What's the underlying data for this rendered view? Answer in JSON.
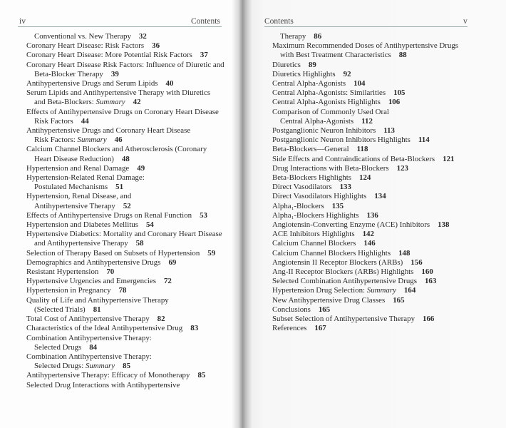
{
  "left_page": {
    "page_number": "iv",
    "running_head": "Contents",
    "entries": [
      {
        "lines": [
          "Conventional vs. New Therapy"
        ],
        "page": "32",
        "continued": true
      },
      {
        "lines": [
          "Coronary Heart Disease: Risk Factors"
        ],
        "page": "36"
      },
      {
        "lines": [
          "Coronary Heart Disease: More Potential Risk Factors"
        ],
        "page": "37"
      },
      {
        "lines": [
          "Coronary Heart Disease Risk Factors: Influence of Diuretic and",
          "Beta-Blocker Therapy"
        ],
        "page": "39"
      },
      {
        "lines": [
          "Antihypertensive Drugs and Serum Lipids"
        ],
        "page": "40"
      },
      {
        "lines": [
          "Serum Lipids and Antihypertensive Therapy with Diuretics",
          "and Beta-Blockers: "
        ],
        "em": "Summary",
        "page": "42"
      },
      {
        "lines": [
          "Effects of Antihypertensive Drugs on Coronary Heart Disease",
          "Risk Factors"
        ],
        "page": "44"
      },
      {
        "lines": [
          "Antihypertensive Drugs and Coronary Heart Disease",
          "Risk Factors: "
        ],
        "em": "Summary",
        "page": "46"
      },
      {
        "lines": [
          "Calcium Channel Blockers and Atherosclerosis (Coronary",
          "Heart Disease Reduction)"
        ],
        "page": "48"
      },
      {
        "lines": [
          "Hypertension and Renal Damage"
        ],
        "page": "49"
      },
      {
        "lines": [
          "Hypertension-Related Renal Damage:",
          "Postulated Mechanisms"
        ],
        "page": "51"
      },
      {
        "lines": [
          "Hypertension, Renal Disease, and",
          "Antihypertensive Therapy"
        ],
        "page": "52"
      },
      {
        "lines": [
          "Effects of Antihypertensive Drugs on Renal Function"
        ],
        "page": "53"
      },
      {
        "lines": [
          "Hypertension and Diabetes Mellitus"
        ],
        "page": "54"
      },
      {
        "lines": [
          "Hypertensive Diabetics: Mortality and Coronary Heart Disease",
          "and Antihypertensive Therapy"
        ],
        "page": "58"
      },
      {
        "lines": [
          "Selection of Therapy Based on Subsets of Hypertension"
        ],
        "page": "59"
      },
      {
        "lines": [
          "Demographics and Antihypertensive Drugs"
        ],
        "page": "69"
      },
      {
        "lines": [
          "Resistant Hypertension"
        ],
        "page": "70"
      },
      {
        "lines": [
          "Hypertensive Urgencies and Emergencies"
        ],
        "page": "72"
      },
      {
        "lines": [
          "Hypertension in Pregnancy"
        ],
        "page": "78"
      },
      {
        "lines": [
          "Quality of Life and Antihypertensive Therapy",
          "(Selected Trials)"
        ],
        "page": "81"
      },
      {
        "lines": [
          "Total Cost of Antihypertensive Therapy"
        ],
        "page": "82"
      },
      {
        "lines": [
          "Characteristics of the Ideal Antihypertensive Drug"
        ],
        "page": "83"
      },
      {
        "lines": [
          "Combination Antihypertensive Therapy:",
          "Selected Drugs"
        ],
        "page": "84"
      },
      {
        "lines": [
          "Combination Antihypertensive Therapy:",
          "Selected Drugs: "
        ],
        "em": "Summary",
        "page": "85"
      },
      {
        "lines": [
          "Antihypertensive Therapy: Efficacy of Monotherapy"
        ],
        "page": "85"
      },
      {
        "lines": [
          "Selected Drug Interactions with Antihypertensive"
        ]
      }
    ]
  },
  "right_page": {
    "page_number": "v",
    "running_head": "Contents",
    "entries": [
      {
        "lines": [
          "Therapy"
        ],
        "page": "86",
        "continued": true
      },
      {
        "lines": [
          "Maximum Recommended Doses of Antihypertensive Drugs",
          "with Best Treatment Characteristics"
        ],
        "page": "88"
      },
      {
        "lines": [
          "Diuretics"
        ],
        "page": "89"
      },
      {
        "lines": [
          "Diuretics Highlights"
        ],
        "page": "92"
      },
      {
        "lines": [
          "Central Alpha-Agonists"
        ],
        "page": "104"
      },
      {
        "lines": [
          "Central Alpha-Agonists: Similarities"
        ],
        "page": "105"
      },
      {
        "lines": [
          "Central Alpha-Agonists Highlights"
        ],
        "page": "106"
      },
      {
        "lines": [
          "Comparison of Commonly Used Oral",
          "Central Alpha-Agonists"
        ],
        "page": "112"
      },
      {
        "lines": [
          "Postganglionic Neuron Inhibitors"
        ],
        "page": "113"
      },
      {
        "lines": [
          "Postganglionic Neuron Inhibitors Highlights"
        ],
        "page": "114"
      },
      {
        "lines": [
          "Beta-Blockers—General"
        ],
        "page": "118"
      },
      {
        "lines": [
          "Side Effects and Contraindications of Beta-Blockers"
        ],
        "page": "121"
      },
      {
        "lines": [
          "Drug Interactions with Beta-Blockers"
        ],
        "page": "123"
      },
      {
        "lines": [
          "Beta-Blockers Highlights"
        ],
        "page": "124"
      },
      {
        "lines": [
          "Direct Vasodilators"
        ],
        "page": "133"
      },
      {
        "lines": [
          "Direct Vasodilators Highlights"
        ],
        "page": "134"
      },
      {
        "lines": [
          "Alpha₁-Blockers"
        ],
        "page": "135"
      },
      {
        "lines": [
          "Alpha₁-Blockers Highlights"
        ],
        "page": "136"
      },
      {
        "lines": [
          "Angiotensin-Converting Enzyme (ACE) Inhibitors"
        ],
        "page": "138"
      },
      {
        "lines": [
          "ACE Inhibitors Highlights"
        ],
        "page": "142"
      },
      {
        "lines": [
          "Calcium Channel Blockers"
        ],
        "page": "146"
      },
      {
        "lines": [
          "Calcium Channel Blockers Highlights"
        ],
        "page": "148"
      },
      {
        "lines": [
          "Angiotensin II Receptor Blockers (ARBs)"
        ],
        "page": "156"
      },
      {
        "lines": [
          "Ang-II Receptor Blockers (ARBs) Highlights"
        ],
        "page": "160"
      },
      {
        "lines": [
          "Selected Combination Antihypertensive Drugs"
        ],
        "page": "163"
      },
      {
        "lines": [
          "Hypertension Drug Selection: "
        ],
        "em": "Summary",
        "page": "164"
      },
      {
        "lines": [
          "New Antihypertensive Drug Classes"
        ],
        "page": "165"
      },
      {
        "lines": [
          "Conclusions"
        ],
        "page": "165"
      },
      {
        "lines": [
          "Subset Selection of Antihypertensive Therapy"
        ],
        "page": "166"
      },
      {
        "lines": [
          "References"
        ],
        "page": "167"
      }
    ]
  }
}
